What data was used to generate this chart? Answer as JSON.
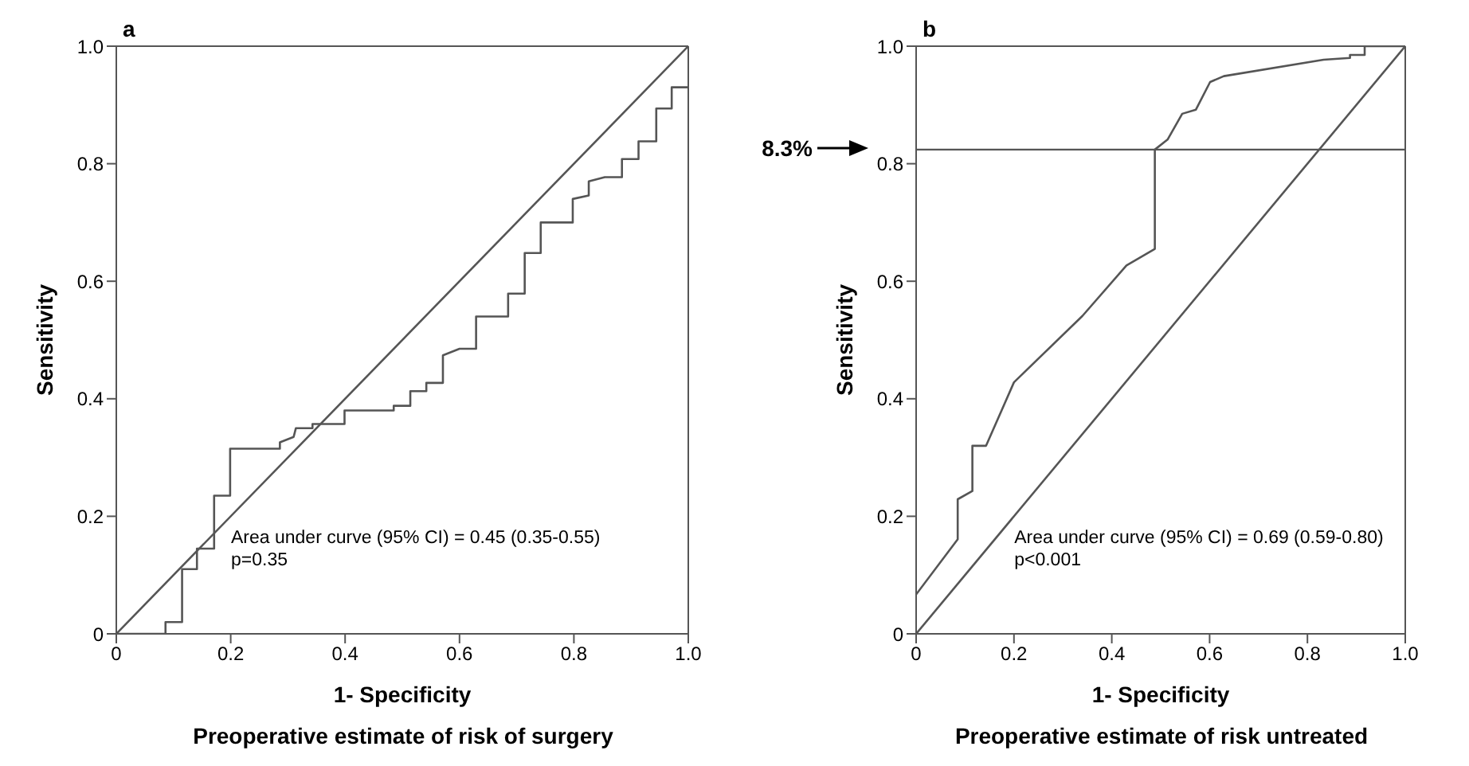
{
  "chart_data": [
    {
      "type": "line",
      "title": "a",
      "subtitle": "Preoperative estimate of risk of surgery",
      "xlabel": "1- Specificity",
      "ylabel": "Sensitivity",
      "xlim": [
        0,
        1
      ],
      "ylim": [
        0,
        1
      ],
      "xticks": [
        0,
        0.2,
        0.4,
        0.6,
        0.8,
        {
          "value": 1,
          "label": "1.0"
        }
      ],
      "yticks": [
        0,
        0.2,
        0.4,
        0.6,
        0.8,
        {
          "value": 1,
          "label": "1.0"
        }
      ],
      "marker": "none",
      "annotations": [
        "Area under curve (95% CI) = 0.45 (0.35-0.55)",
        "p=0.35"
      ],
      "series": [
        {
          "color": "#555555",
          "x": [
            0,
            0.086,
            0.086,
            0.115,
            0.115,
            0.141,
            0.141,
            0.171,
            0.171,
            0.199,
            0.199,
            0.286,
            0.286,
            0.31,
            0.314,
            0.343,
            0.343,
            0.399,
            0.399,
            0.485,
            0.485,
            0.514,
            0.514,
            0.542,
            0.542,
            0.571,
            0.571,
            0.6,
            0.629,
            0.629,
            0.685,
            0.685,
            0.714,
            0.714,
            0.742,
            0.742,
            0.798,
            0.798,
            0.826,
            0.826,
            0.854,
            0.884,
            0.884,
            0.913,
            0.913,
            0.944,
            0.944,
            0.971,
            0.971,
            1
          ],
          "values": [
            0,
            0,
            0.02,
            0.02,
            0.11,
            0.11,
            0.145,
            0.145,
            0.235,
            0.235,
            0.315,
            0.315,
            0.326,
            0.335,
            0.35,
            0.35,
            0.357,
            0.357,
            0.38,
            0.38,
            0.388,
            0.388,
            0.413,
            0.413,
            0.427,
            0.427,
            0.474,
            0.485,
            0.485,
            0.54,
            0.54,
            0.579,
            0.579,
            0.648,
            0.648,
            0.7,
            0.7,
            0.74,
            0.746,
            0.77,
            0.777,
            0.777,
            0.808,
            0.808,
            0.838,
            0.838,
            0.894,
            0.894,
            0.93,
            0.93
          ]
        },
        {
          "color": "#555555",
          "x": [
            0,
            1
          ],
          "values": [
            0,
            1
          ]
        }
      ]
    },
    {
      "type": "line",
      "title": "b",
      "subtitle": "Preoperative estimate of risk untreated",
      "xlabel": "1- Specificity",
      "ylabel": "Sensitivity",
      "xlim": [
        0,
        1
      ],
      "ylim": [
        0,
        1
      ],
      "xticks": [
        0,
        0.2,
        0.4,
        0.6,
        0.8,
        {
          "value": 1,
          "label": "1.0"
        }
      ],
      "yticks": [
        0,
        0.2,
        0.4,
        0.6,
        0.8,
        {
          "value": 1,
          "label": "1.0"
        }
      ],
      "marker": "none",
      "annotations": [
        "Area under curve (95% CI) = 0.69 (0.59-0.80)",
        "p<0.001",
        "8.3%"
      ],
      "ref_lines": [
        {
          "axis": "y",
          "value": 0.824,
          "color": "#555555"
        }
      ],
      "series": [
        {
          "color": "#555555",
          "x": [
            0,
            0.085,
            0.085,
            0.115,
            0.115,
            0.143,
            0.2,
            0.34,
            0.43,
            0.488,
            0.488,
            0.514,
            0.544,
            0.572,
            0.601,
            0.629,
            0.833,
            0.887,
            0.887,
            0.917,
            0.917,
            1
          ],
          "values": [
            0.067,
            0.161,
            0.229,
            0.243,
            0.32,
            0.32,
            0.428,
            0.541,
            0.627,
            0.655,
            0.824,
            0.841,
            0.885,
            0.892,
            0.939,
            0.949,
            0.977,
            0.98,
            0.985,
            0.985,
            1,
            1
          ]
        },
        {
          "color": "#555555",
          "x": [
            0,
            1
          ],
          "values": [
            0,
            1
          ]
        }
      ]
    }
  ]
}
